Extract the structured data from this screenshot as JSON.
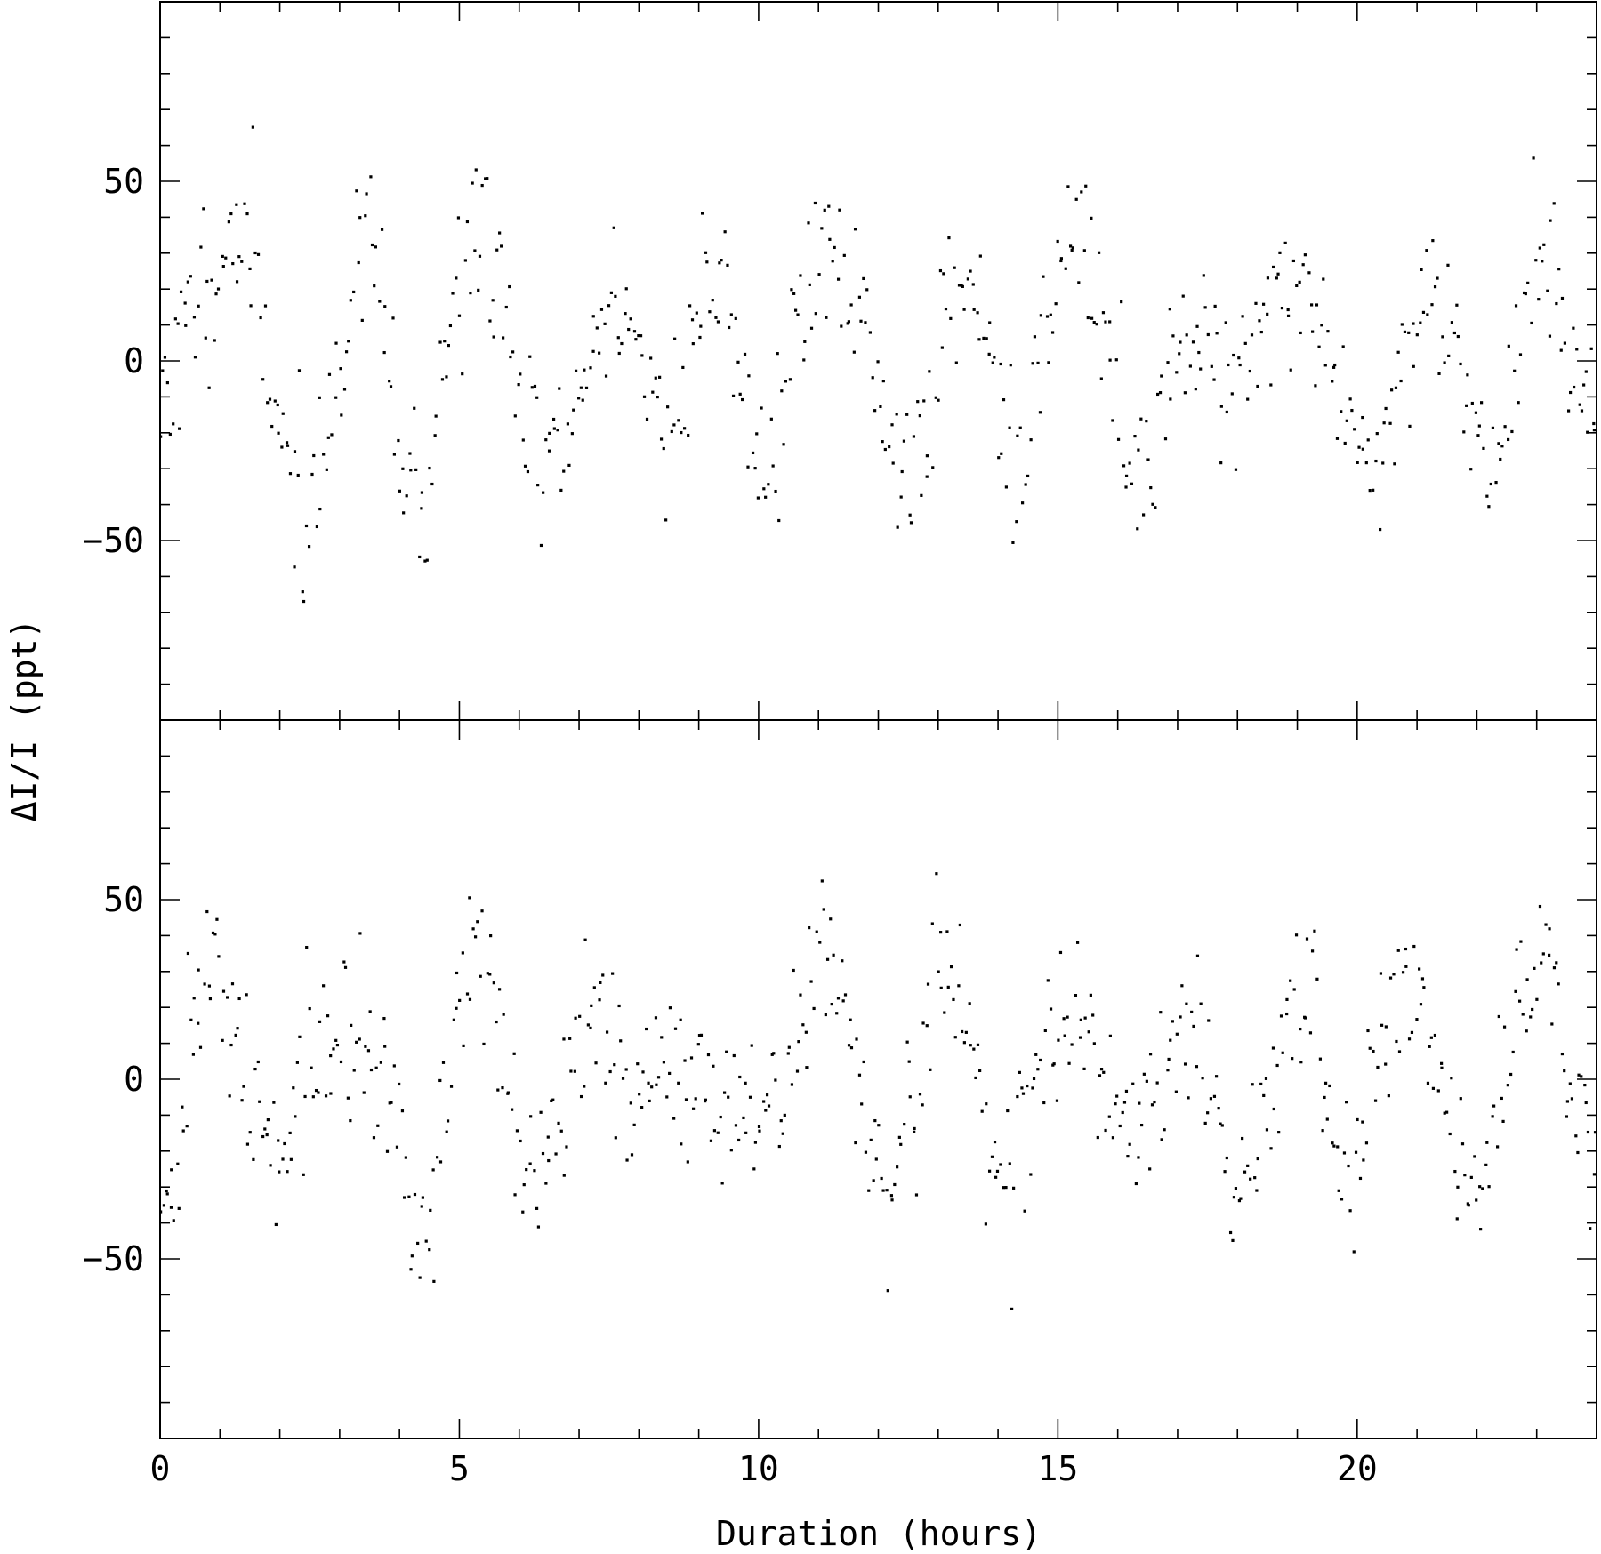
{
  "chart_data": {
    "type": "scatter",
    "xlabel": "Duration (hours)",
    "ylabel": "ΔI/I (ppt)",
    "xlim": [
      0,
      24
    ],
    "x_ticks": [
      0,
      5,
      10,
      15,
      20
    ],
    "x_tick_labels": [
      "0",
      "5",
      "10",
      "15",
      "20"
    ],
    "grid": false,
    "legend": "none",
    "marker_color": "#000000",
    "panels": [
      {
        "name": "top",
        "ylim": [
          -100,
          100
        ],
        "y_ticks": [
          -50,
          0,
          50
        ],
        "y_tick_labels": [
          "−50",
          "0",
          "50"
        ],
        "trend_anchors": [
          [
            0,
            -10
          ],
          [
            1,
            30
          ],
          [
            1.4,
            35
          ],
          [
            1.7,
            10
          ],
          [
            2,
            -15
          ],
          [
            2.4,
            -45
          ],
          [
            2.7,
            -30
          ],
          [
            3.1,
            10
          ],
          [
            3.5,
            35
          ],
          [
            3.8,
            5
          ],
          [
            4,
            -30
          ],
          [
            4.4,
            -45
          ],
          [
            4.7,
            -5
          ],
          [
            5,
            25
          ],
          [
            5.4,
            40
          ],
          [
            5.7,
            15
          ],
          [
            6,
            -10
          ],
          [
            6.4,
            -25
          ],
          [
            6.7,
            -30
          ],
          [
            7,
            -10
          ],
          [
            7.3,
            5
          ],
          [
            7.6,
            20
          ],
          [
            7.9,
            10
          ],
          [
            8.2,
            -10
          ],
          [
            8.5,
            -20
          ],
          [
            8.8,
            0
          ],
          [
            9.1,
            20
          ],
          [
            9.4,
            25
          ],
          [
            9.7,
            0
          ],
          [
            10,
            -35
          ],
          [
            10.3,
            -20
          ],
          [
            10.6,
            5
          ],
          [
            10.9,
            25
          ],
          [
            11.2,
            35
          ],
          [
            11.6,
            15
          ],
          [
            11.9,
            -5
          ],
          [
            12.2,
            -20
          ],
          [
            12.5,
            -35
          ],
          [
            12.8,
            -15
          ],
          [
            13.1,
            10
          ],
          [
            13.4,
            25
          ],
          [
            13.7,
            20
          ],
          [
            14,
            -10
          ],
          [
            14.3,
            -35
          ],
          [
            14.6,
            -15
          ],
          [
            14.9,
            10
          ],
          [
            15.2,
            40
          ],
          [
            15.5,
            30
          ],
          [
            15.8,
            0
          ],
          [
            16.1,
            -20
          ],
          [
            16.4,
            -35
          ],
          [
            16.7,
            -20
          ],
          [
            17,
            5
          ],
          [
            17.4,
            15
          ],
          [
            17.8,
            -5
          ],
          [
            18.2,
            0
          ],
          [
            18.6,
            20
          ],
          [
            19,
            20
          ],
          [
            19.4,
            10
          ],
          [
            19.8,
            -10
          ],
          [
            20.2,
            -35
          ],
          [
            20.5,
            -20
          ],
          [
            20.9,
            10
          ],
          [
            21.3,
            25
          ],
          [
            21.6,
            10
          ],
          [
            21.9,
            -20
          ],
          [
            22.3,
            -30
          ],
          [
            22.6,
            -10
          ],
          [
            22.9,
            30
          ],
          [
            23.2,
            35
          ],
          [
            23.5,
            5
          ],
          [
            24,
            -30
          ]
        ],
        "n_points": 620,
        "scatter_spread": 12,
        "seed": 11
      },
      {
        "name": "bottom",
        "ylim": [
          -100,
          100
        ],
        "y_ticks": [
          -50,
          0,
          50
        ],
        "y_tick_labels": [
          "−50",
          "0",
          "50"
        ],
        "trend_anchors": [
          [
            0,
            -35
          ],
          [
            0.3,
            -20
          ],
          [
            0.6,
            15
          ],
          [
            0.9,
            35
          ],
          [
            1.2,
            15
          ],
          [
            1.5,
            -5
          ],
          [
            1.8,
            -20
          ],
          [
            2.1,
            -10
          ],
          [
            2.4,
            5
          ],
          [
            2.8,
            5
          ],
          [
            3.2,
            10
          ],
          [
            3.6,
            15
          ],
          [
            3.9,
            -10
          ],
          [
            4.2,
            -35
          ],
          [
            4.5,
            -40
          ],
          [
            4.8,
            -10
          ],
          [
            5.1,
            35
          ],
          [
            5.4,
            40
          ],
          [
            5.7,
            10
          ],
          [
            6,
            -25
          ],
          [
            6.3,
            -35
          ],
          [
            6.6,
            -10
          ],
          [
            7,
            15
          ],
          [
            7.4,
            20
          ],
          [
            7.7,
            0
          ],
          [
            8,
            -10
          ],
          [
            8.5,
            0
          ],
          [
            9,
            5
          ],
          [
            9.5,
            -5
          ],
          [
            10,
            -10
          ],
          [
            10.5,
            0
          ],
          [
            10.8,
            20
          ],
          [
            11.1,
            40
          ],
          [
            11.4,
            20
          ],
          [
            11.7,
            -10
          ],
          [
            12,
            -40
          ],
          [
            12.3,
            -30
          ],
          [
            12.6,
            -10
          ],
          [
            12.9,
            30
          ],
          [
            13.2,
            35
          ],
          [
            13.6,
            10
          ],
          [
            13.9,
            -20
          ],
          [
            14.2,
            -30
          ],
          [
            14.5,
            -10
          ],
          [
            14.8,
            10
          ],
          [
            15.2,
            15
          ],
          [
            15.6,
            10
          ],
          [
            16,
            -10
          ],
          [
            16.4,
            -15
          ],
          [
            16.7,
            0
          ],
          [
            17,
            15
          ],
          [
            17.3,
            20
          ],
          [
            17.6,
            0
          ],
          [
            18,
            -30
          ],
          [
            18.4,
            -20
          ],
          [
            18.7,
            10
          ],
          [
            19,
            30
          ],
          [
            19.3,
            15
          ],
          [
            19.6,
            -15
          ],
          [
            19.9,
            -25
          ],
          [
            20.2,
            0
          ],
          [
            20.6,
            20
          ],
          [
            21,
            25
          ],
          [
            21.3,
            5
          ],
          [
            21.6,
            -15
          ],
          [
            22,
            -25
          ],
          [
            22.3,
            -20
          ],
          [
            22.6,
            10
          ],
          [
            22.9,
            35
          ],
          [
            23.3,
            30
          ],
          [
            23.6,
            0
          ],
          [
            24,
            -35
          ]
        ],
        "n_points": 640,
        "scatter_spread": 12,
        "seed": 29
      }
    ]
  }
}
